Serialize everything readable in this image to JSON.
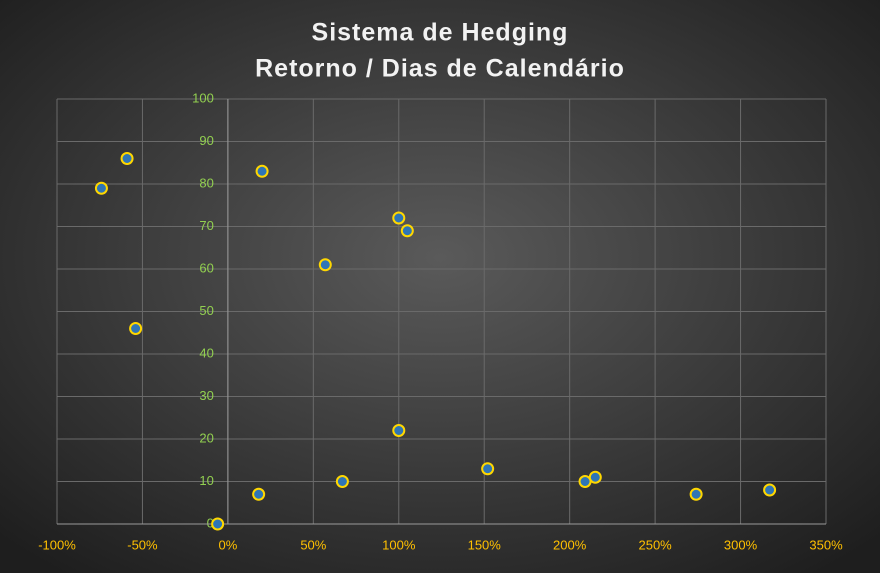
{
  "chart_data": {
    "type": "scatter",
    "title": [
      "Sistema de Hedging",
      "Retorno / Dias de Calendário"
    ],
    "series": [
      {
        "color": "#2e75b6",
        "edge": "#ffd700",
        "x": [
          -74,
          -59,
          -54,
          -6,
          20,
          18,
          57,
          67,
          100,
          105,
          100,
          152,
          209,
          215,
          274,
          317
        ],
        "values": [
          79,
          86,
          46,
          0,
          83,
          7,
          61,
          10,
          72,
          69,
          22,
          13,
          10,
          11,
          7,
          8
        ]
      }
    ],
    "xlim": [
      -100,
      350
    ],
    "xticks": [
      {
        "value": -100,
        "label": "-100%"
      },
      {
        "value": -50,
        "label": "-50%"
      },
      {
        "value": 0,
        "label": "0%"
      },
      {
        "value": 50,
        "label": "50%"
      },
      {
        "value": 100,
        "label": "100%"
      },
      {
        "value": 150,
        "label": "150%"
      },
      {
        "value": 200,
        "label": "200%"
      },
      {
        "value": 250,
        "label": "250%"
      },
      {
        "value": 300,
        "label": "300%"
      },
      {
        "value": 350,
        "label": "350%"
      }
    ],
    "ylim": [
      0,
      100
    ],
    "yticks": [
      0,
      10,
      20,
      30,
      40,
      50,
      60,
      70,
      80,
      90,
      100
    ],
    "grid": true,
    "xtick_color": "#ffc000",
    "ytick_color": "#92d050"
  }
}
